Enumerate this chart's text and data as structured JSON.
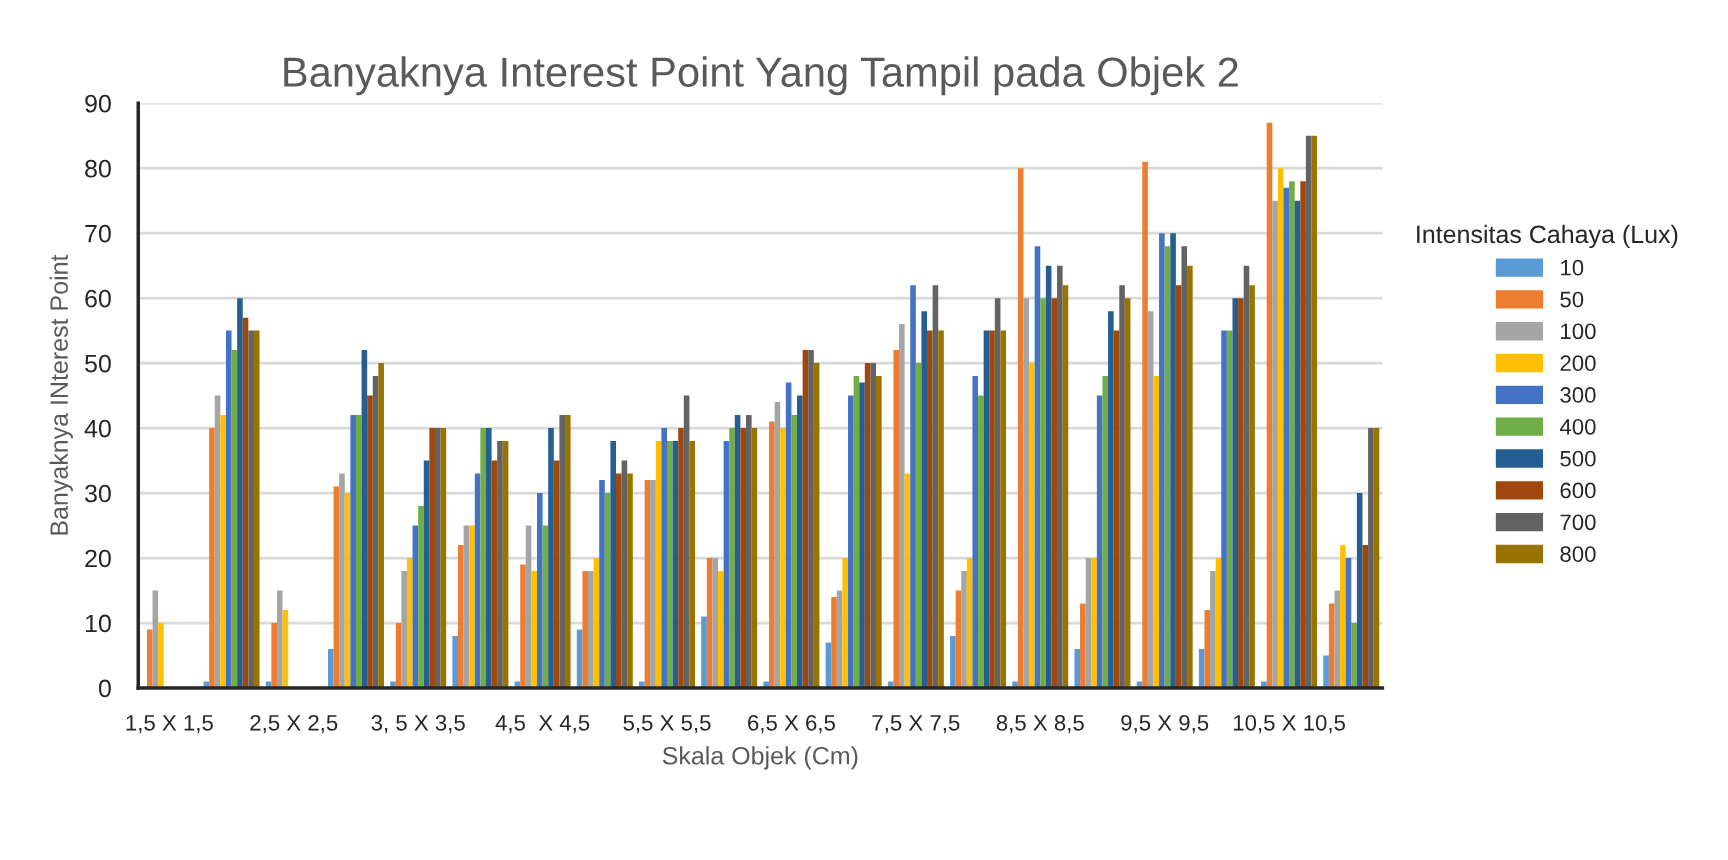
{
  "chart_data": {
    "type": "bar",
    "title": "Banyaknya Interest Point Yang Tampil pada Objek 2",
    "xlabel": "Skala Objek (Cm)",
    "ylabel": "Banyaknya INterest Point",
    "legend_title": "Intensitas Cahaya (Lux)",
    "categories": [
      "1,5 X 1,5",
      null,
      "2,5 X 2,5",
      null,
      "3, 5 X 3,5",
      null,
      "4,5  X 4,5",
      null,
      "5,5 X 5,5",
      null,
      "6,5 X 6,5",
      null,
      "7,5 X 7,5",
      null,
      "8,5 X 8,5",
      null,
      "9,5 X 9,5",
      null,
      "10,5 X 10,5",
      null
    ],
    "series": [
      {
        "name": "10",
        "color": "#5b9bd5",
        "values": [
          0,
          1,
          1,
          6,
          1,
          8,
          1,
          9,
          1,
          11,
          1,
          7,
          1,
          8,
          1,
          6,
          1,
          6,
          1,
          5
        ]
      },
      {
        "name": "50",
        "color": "#ed7d31",
        "values": [
          9,
          40,
          10,
          31,
          10,
          22,
          19,
          18,
          32,
          20,
          41,
          14,
          52,
          15,
          80,
          13,
          81,
          12,
          87,
          13
        ]
      },
      {
        "name": "100",
        "color": "#a5a5a5",
        "values": [
          15,
          45,
          15,
          33,
          18,
          25,
          25,
          18,
          32,
          20,
          44,
          15,
          56,
          18,
          60,
          20,
          58,
          18,
          75,
          15
        ]
      },
      {
        "name": "200",
        "color": "#ffc000",
        "values": [
          10,
          42,
          12,
          30,
          20,
          25,
          18,
          20,
          38,
          18,
          40,
          20,
          33,
          20,
          50,
          20,
          48,
          20,
          80,
          22
        ]
      },
      {
        "name": "300",
        "color": "#4472c4",
        "values": [
          0,
          55,
          0,
          42,
          25,
          33,
          30,
          32,
          40,
          38,
          47,
          45,
          62,
          48,
          68,
          45,
          70,
          55,
          77,
          20
        ]
      },
      {
        "name": "400",
        "color": "#70ad47",
        "values": [
          0,
          52,
          0,
          42,
          28,
          40,
          25,
          30,
          38,
          40,
          42,
          48,
          50,
          45,
          60,
          48,
          68,
          55,
          78,
          10
        ]
      },
      {
        "name": "500",
        "color": "#255e91",
        "values": [
          0,
          60,
          0,
          52,
          35,
          40,
          40,
          38,
          38,
          42,
          45,
          47,
          58,
          55,
          65,
          58,
          70,
          60,
          75,
          30
        ]
      },
      {
        "name": "600",
        "color": "#9e480e",
        "values": [
          0,
          57,
          0,
          45,
          40,
          35,
          35,
          33,
          40,
          40,
          52,
          50,
          55,
          55,
          60,
          55,
          62,
          60,
          78,
          22
        ]
      },
      {
        "name": "700",
        "color": "#636363",
        "values": [
          0,
          55,
          0,
          48,
          40,
          38,
          42,
          35,
          45,
          42,
          52,
          50,
          62,
          60,
          65,
          62,
          68,
          65,
          85,
          40
        ]
      },
      {
        "name": "800",
        "color": "#997300",
        "values": [
          0,
          55,
          0,
          50,
          40,
          38,
          42,
          33,
          38,
          40,
          50,
          48,
          55,
          55,
          62,
          60,
          65,
          62,
          85,
          40
        ]
      }
    ],
    "ylim": [
      0,
      90
    ],
    "yticks": [
      0,
      10,
      20,
      30,
      40,
      50,
      60,
      70,
      80,
      90
    ],
    "grid": "y",
    "legend": "right"
  }
}
